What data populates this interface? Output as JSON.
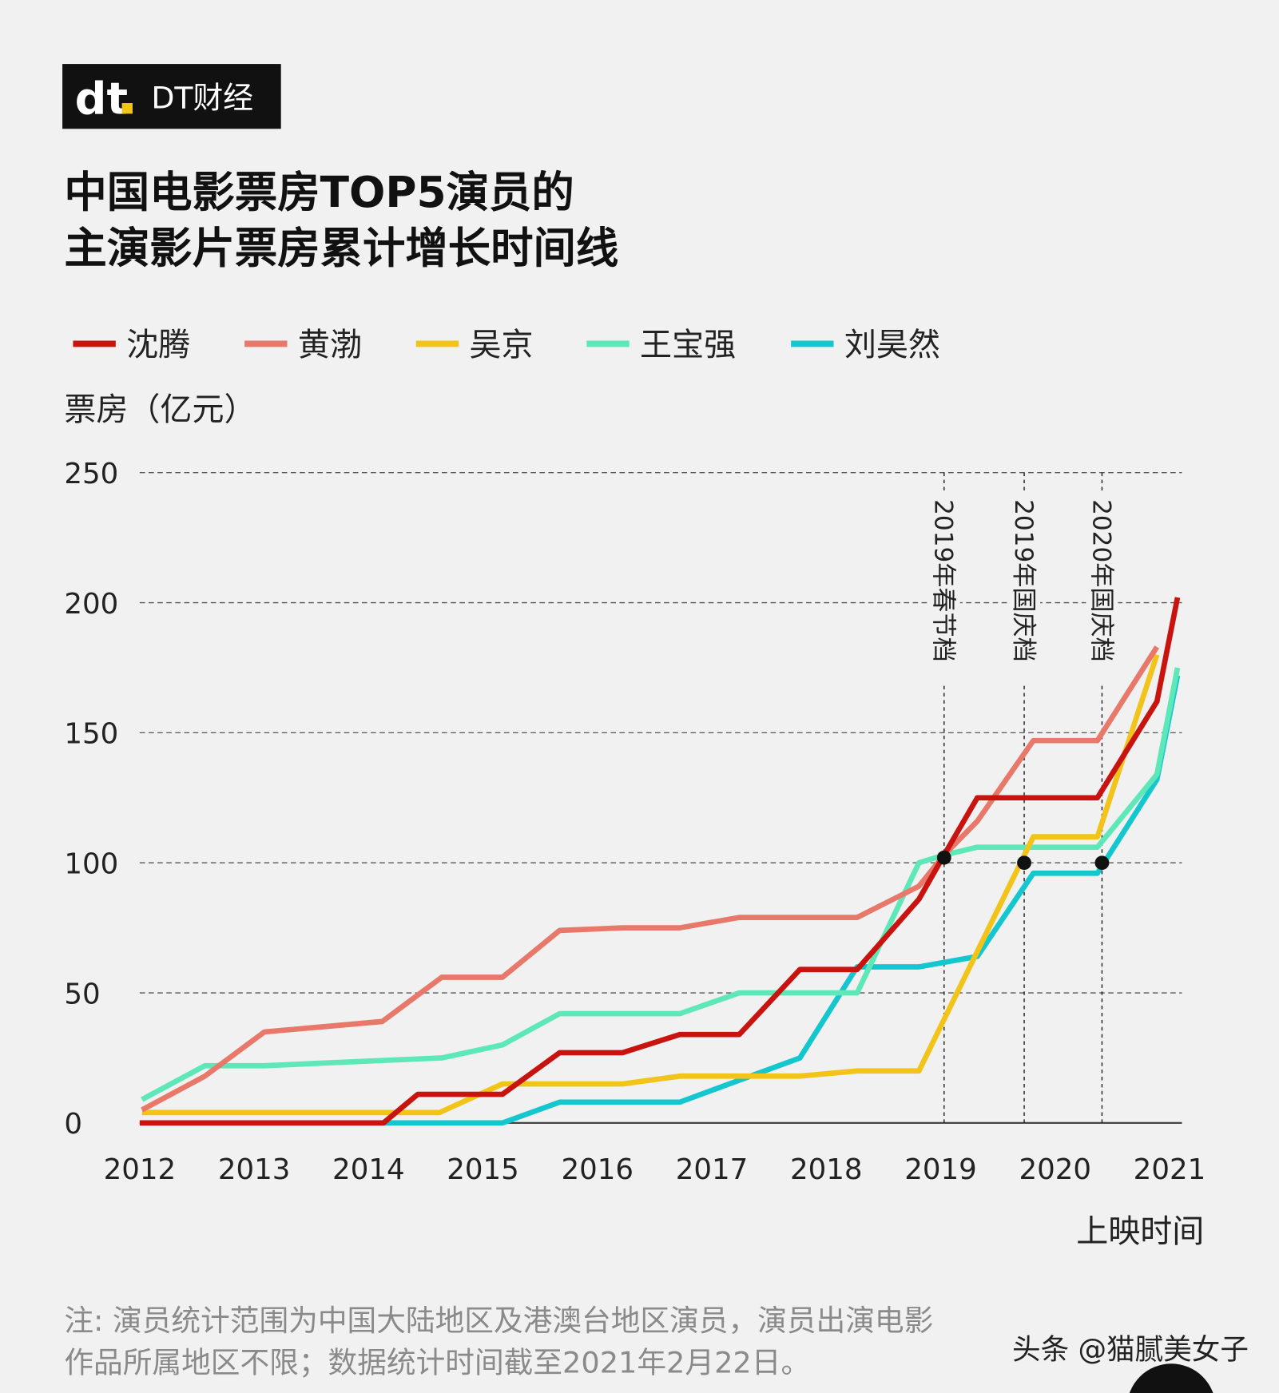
{
  "brand": {
    "logo_text": "DT财经",
    "logo_mark": "dt"
  },
  "title_lines": [
    "中国电影票房TOP5演员的",
    "主演影片票房累计增长时间线"
  ],
  "watermark": "头条 @猫腻美女子",
  "notes": [
    "注: 演员统计范围为中国大陆地区及港澳台地区演员，演员出演电影",
    "作品所属地区不限；数据统计时间截至2021年2月22日。"
  ],
  "chart_data": {
    "type": "line",
    "ylabel": "票房（亿元）",
    "xlabel": "上映时间",
    "xlim": [
      2012,
      2021
    ],
    "ylim": [
      0,
      250
    ],
    "yticks": [
      0,
      50,
      100,
      150,
      200,
      250
    ],
    "xticks": [
      "2012",
      "2013",
      "2014",
      "2015",
      "2016",
      "2017",
      "2018",
      "2019",
      "2020",
      "2021"
    ],
    "grid": "horizontal dashed",
    "legend": "top",
    "series": [
      {
        "name": "沈腾",
        "color": "#c8130f",
        "points": [
          [
            2012,
            0
          ],
          [
            2014.13,
            0
          ],
          [
            2014.43,
            11
          ],
          [
            2015.17,
            11
          ],
          [
            2015.67,
            27
          ],
          [
            2016.22,
            27
          ],
          [
            2016.72,
            34
          ],
          [
            2017.24,
            34
          ],
          [
            2017.77,
            59
          ],
          [
            2018.27,
            59
          ],
          [
            2018.81,
            86
          ],
          [
            2019.03,
            103
          ],
          [
            2019.32,
            125
          ],
          [
            2020.37,
            125
          ],
          [
            2020.89,
            162
          ],
          [
            2021.07,
            202
          ]
        ]
      },
      {
        "name": "黄渤",
        "color": "#e8786a",
        "points": [
          [
            2012.02,
            5
          ],
          [
            2012.57,
            18
          ],
          [
            2013.09,
            35
          ],
          [
            2013.61,
            37
          ],
          [
            2014.12,
            39
          ],
          [
            2014.64,
            56
          ],
          [
            2015.17,
            56
          ],
          [
            2015.67,
            74
          ],
          [
            2016.22,
            75
          ],
          [
            2016.72,
            75
          ],
          [
            2017.24,
            79
          ],
          [
            2018.27,
            79
          ],
          [
            2018.81,
            91
          ],
          [
            2019.03,
            103
          ],
          [
            2019.32,
            116
          ],
          [
            2019.81,
            147
          ],
          [
            2020.37,
            147
          ],
          [
            2020.89,
            183
          ]
        ]
      },
      {
        "name": "吴京",
        "color": "#f2c419",
        "points": [
          [
            2012.02,
            4
          ],
          [
            2014.62,
            4
          ],
          [
            2015.17,
            15
          ],
          [
            2016.22,
            15
          ],
          [
            2016.72,
            18
          ],
          [
            2017.77,
            18
          ],
          [
            2018.27,
            20
          ],
          [
            2018.81,
            20
          ],
          [
            2019.81,
            110
          ],
          [
            2020.37,
            110
          ],
          [
            2020.89,
            180
          ]
        ]
      },
      {
        "name": "王宝强",
        "color": "#5ee8b8",
        "points": [
          [
            2012.02,
            9
          ],
          [
            2012.57,
            22
          ],
          [
            2013.09,
            22
          ],
          [
            2014.12,
            24
          ],
          [
            2014.64,
            25
          ],
          [
            2015.17,
            30
          ],
          [
            2015.67,
            42
          ],
          [
            2016.72,
            42
          ],
          [
            2017.24,
            50
          ],
          [
            2018.27,
            50
          ],
          [
            2018.81,
            100
          ],
          [
            2019.03,
            103
          ],
          [
            2019.32,
            106
          ],
          [
            2020.37,
            106
          ],
          [
            2020.89,
            134
          ],
          [
            2021.07,
            175
          ]
        ]
      },
      {
        "name": "刘昊然",
        "color": "#14c7cf",
        "points": [
          [
            2014.13,
            0
          ],
          [
            2015.17,
            0
          ],
          [
            2015.67,
            8
          ],
          [
            2016.72,
            8
          ],
          [
            2017.77,
            25
          ],
          [
            2018.27,
            60
          ],
          [
            2018.81,
            60
          ],
          [
            2019.32,
            64
          ],
          [
            2019.81,
            96
          ],
          [
            2020.37,
            96
          ],
          [
            2020.89,
            132
          ],
          [
            2021.07,
            172
          ]
        ]
      }
    ],
    "annotations": [
      {
        "label": "2019年春节档",
        "x": 2019.03,
        "y": 102
      },
      {
        "label": "2019年国庆档",
        "x": 2019.73,
        "y": 100
      },
      {
        "label": "2020年国庆档",
        "x": 2020.41,
        "y": 100
      }
    ]
  }
}
